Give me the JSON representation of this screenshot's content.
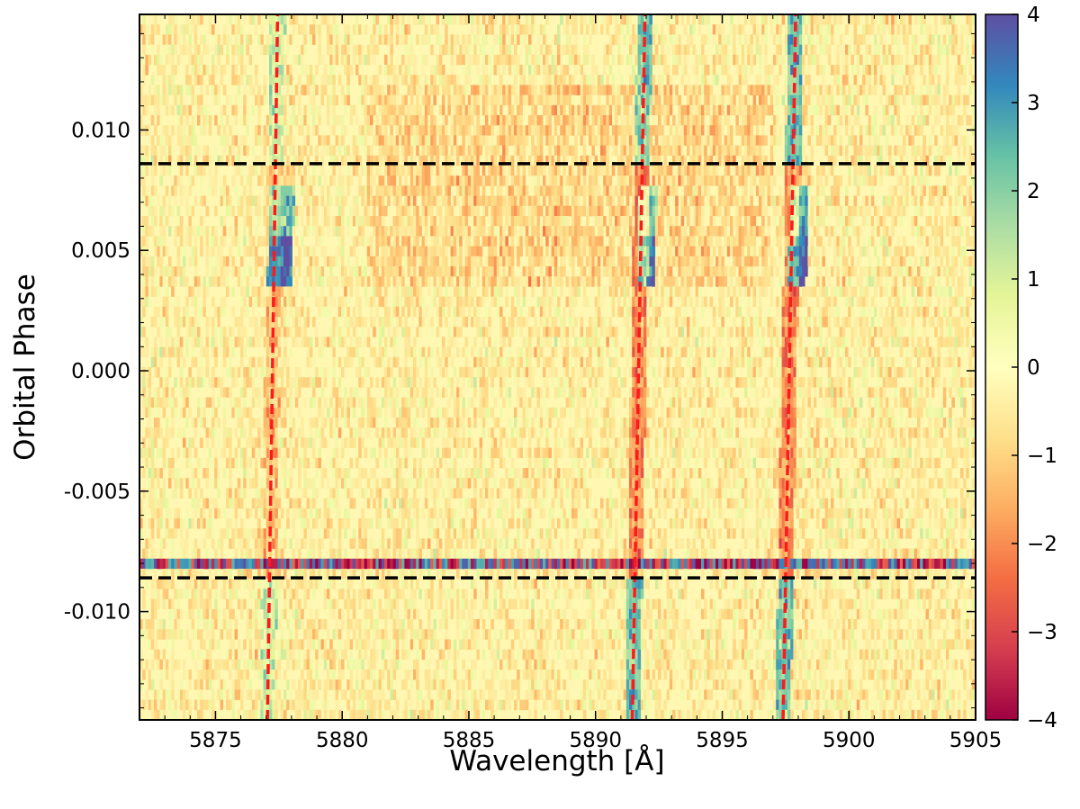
{
  "chart_data": {
    "type": "heatmap",
    "title": "",
    "xlabel": "Wavelength [Å]",
    "ylabel": "Orbital Phase",
    "xlim": [
      5872,
      5905
    ],
    "ylim": [
      -0.0145,
      0.0148
    ],
    "x_ticks": [
      5875,
      5880,
      5885,
      5890,
      5895,
      5900,
      5905
    ],
    "x_tick_labels": [
      "5875",
      "5880",
      "5885",
      "5890",
      "5895",
      "5900",
      "5905"
    ],
    "y_ticks": [
      -0.01,
      -0.005,
      0.0,
      0.005,
      0.01
    ],
    "y_tick_labels": [
      "-0.010",
      "-0.005",
      "0.000",
      "0.005",
      "0.010"
    ],
    "colorbar": {
      "colormap": "Spectral",
      "range": [
        -4,
        4
      ],
      "ticks": [
        4,
        3,
        2,
        1,
        0,
        -1,
        -2,
        -3,
        -4
      ],
      "tick_labels": [
        "4",
        "3",
        "2",
        "1",
        "0",
        "−1",
        "−2",
        "−3",
        "−4"
      ]
    },
    "horizontal_reference_lines": {
      "style": "dashed",
      "color": "#000000",
      "phases": [
        0.0086,
        -0.0086
      ]
    },
    "line_tracks": {
      "style": "dashed",
      "color": "#ff1a1a",
      "tracks": [
        {
          "lambda_at_bottom": 5877.05,
          "lambda_at_top": 5877.45
        },
        {
          "lambda_at_bottom": 5891.45,
          "lambda_at_top": 5891.95
        },
        {
          "lambda_at_bottom": 5897.4,
          "lambda_at_top": 5897.9
        }
      ]
    },
    "features": [
      {
        "description": "absorption blobs (positive values)",
        "phase_range": [
          0.0035,
          0.0075
        ],
        "wavelengths": [
          5877.5,
          5891.8,
          5897.8
        ]
      },
      {
        "description": "noisy high-amplitude row",
        "phase": -0.008
      }
    ],
    "grid": false
  }
}
